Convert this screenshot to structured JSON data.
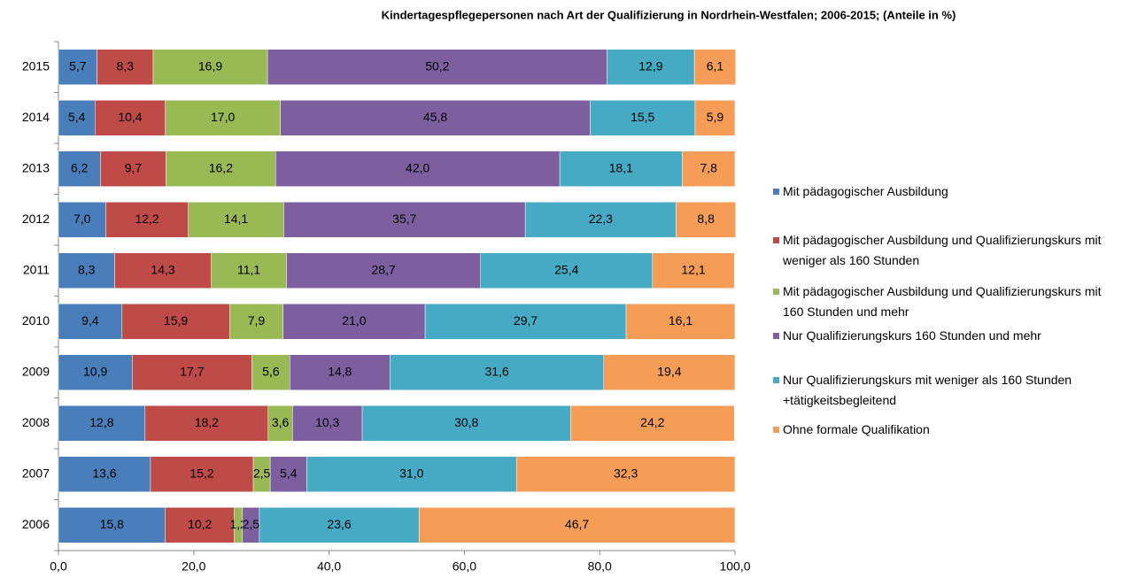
{
  "chart_data": {
    "type": "stacked_bar_horizontal",
    "title": "Kindertagespflegepersonen nach Art der Qualifizierung in Nordrhein-Westfalen; 2006-2015; (Anteile in %)",
    "categories": [
      "2006",
      "2007",
      "2008",
      "2009",
      "2010",
      "2011",
      "2012",
      "2013",
      "2014",
      "2015"
    ],
    "series": [
      {
        "name": "Mit pädagogischer Ausbildung",
        "color": "#4a7ebb",
        "values": [
          15.8,
          13.6,
          12.8,
          10.9,
          9.4,
          8.3,
          7.0,
          6.2,
          5.4,
          5.7
        ],
        "value_labels": [
          "15,8",
          "13,6",
          "12,8",
          "10,9",
          "9,4",
          "8,3",
          "7,0",
          "6,2",
          "5,4",
          "5,7"
        ]
      },
      {
        "name": "Mit pädagogischer Ausbildung und Qualifizierungskurs mit weniger als 160 Stunden",
        "color": "#be4b48",
        "values": [
          10.2,
          15.2,
          18.2,
          17.7,
          15.9,
          14.3,
          12.2,
          9.7,
          10.4,
          8.3
        ],
        "value_labels": [
          "10,2",
          "15,2",
          "18,2",
          "17,7",
          "15,9",
          "14,3",
          "12,2",
          "9,7",
          "10,4",
          "8,3"
        ]
      },
      {
        "name": "Mit pädagogischer Ausbildung und Qualifizierungskurs mit 160 Stunden und mehr",
        "color": "#98b954",
        "values": [
          1.2,
          2.5,
          3.6,
          5.6,
          7.9,
          11.1,
          14.1,
          16.2,
          17.0,
          16.9
        ],
        "value_labels": [
          "1,2",
          "2,5",
          "3,6",
          "5,6",
          "7,9",
          "11,1",
          "14,1",
          "16,2",
          "17,0",
          "16,9"
        ]
      },
      {
        "name": "Nur Qualifizierungskurs 160 Stunden und mehr",
        "color": "#7d5fa0",
        "values": [
          2.5,
          5.4,
          10.3,
          14.8,
          21.0,
          28.7,
          35.7,
          42.0,
          45.8,
          50.2
        ],
        "value_labels": [
          "2,5",
          "5,4",
          "10,3",
          "14,8",
          "21,0",
          "28,7",
          "35,7",
          "42,0",
          "45,8",
          "50,2"
        ]
      },
      {
        "name": "Nur Qualifizierungskurs mit weniger als 160 Stunden +tätigkeitsbegleitend",
        "color": "#46aac5",
        "values": [
          23.6,
          31.0,
          30.8,
          31.6,
          29.7,
          25.4,
          22.3,
          18.1,
          15.5,
          12.9
        ],
        "value_labels": [
          "23,6",
          "31,0",
          "30,8",
          "31,6",
          "29,7",
          "25,4",
          "22,3",
          "18,1",
          "15,5",
          "12,9"
        ]
      },
      {
        "name": "Ohne formale Qualifikation",
        "color": "#f59d56",
        "values": [
          46.7,
          32.3,
          24.2,
          19.4,
          16.1,
          12.1,
          8.8,
          7.8,
          5.9,
          6.1
        ],
        "value_labels": [
          "46,7",
          "32,3",
          "24,2",
          "19,4",
          "16,1",
          "12,1",
          "8,8",
          "7,8",
          "5,9",
          "6,1"
        ]
      }
    ],
    "xlim": [
      0,
      100
    ],
    "xticks": [
      {
        "value": 0,
        "label": "0,0"
      },
      {
        "value": 20,
        "label": "20,0"
      },
      {
        "value": 40,
        "label": "40,0"
      },
      {
        "value": 60,
        "label": "60,0"
      },
      {
        "value": 80,
        "label": "80,0"
      },
      {
        "value": 100,
        "label": "100,0"
      }
    ],
    "legend": "right"
  }
}
